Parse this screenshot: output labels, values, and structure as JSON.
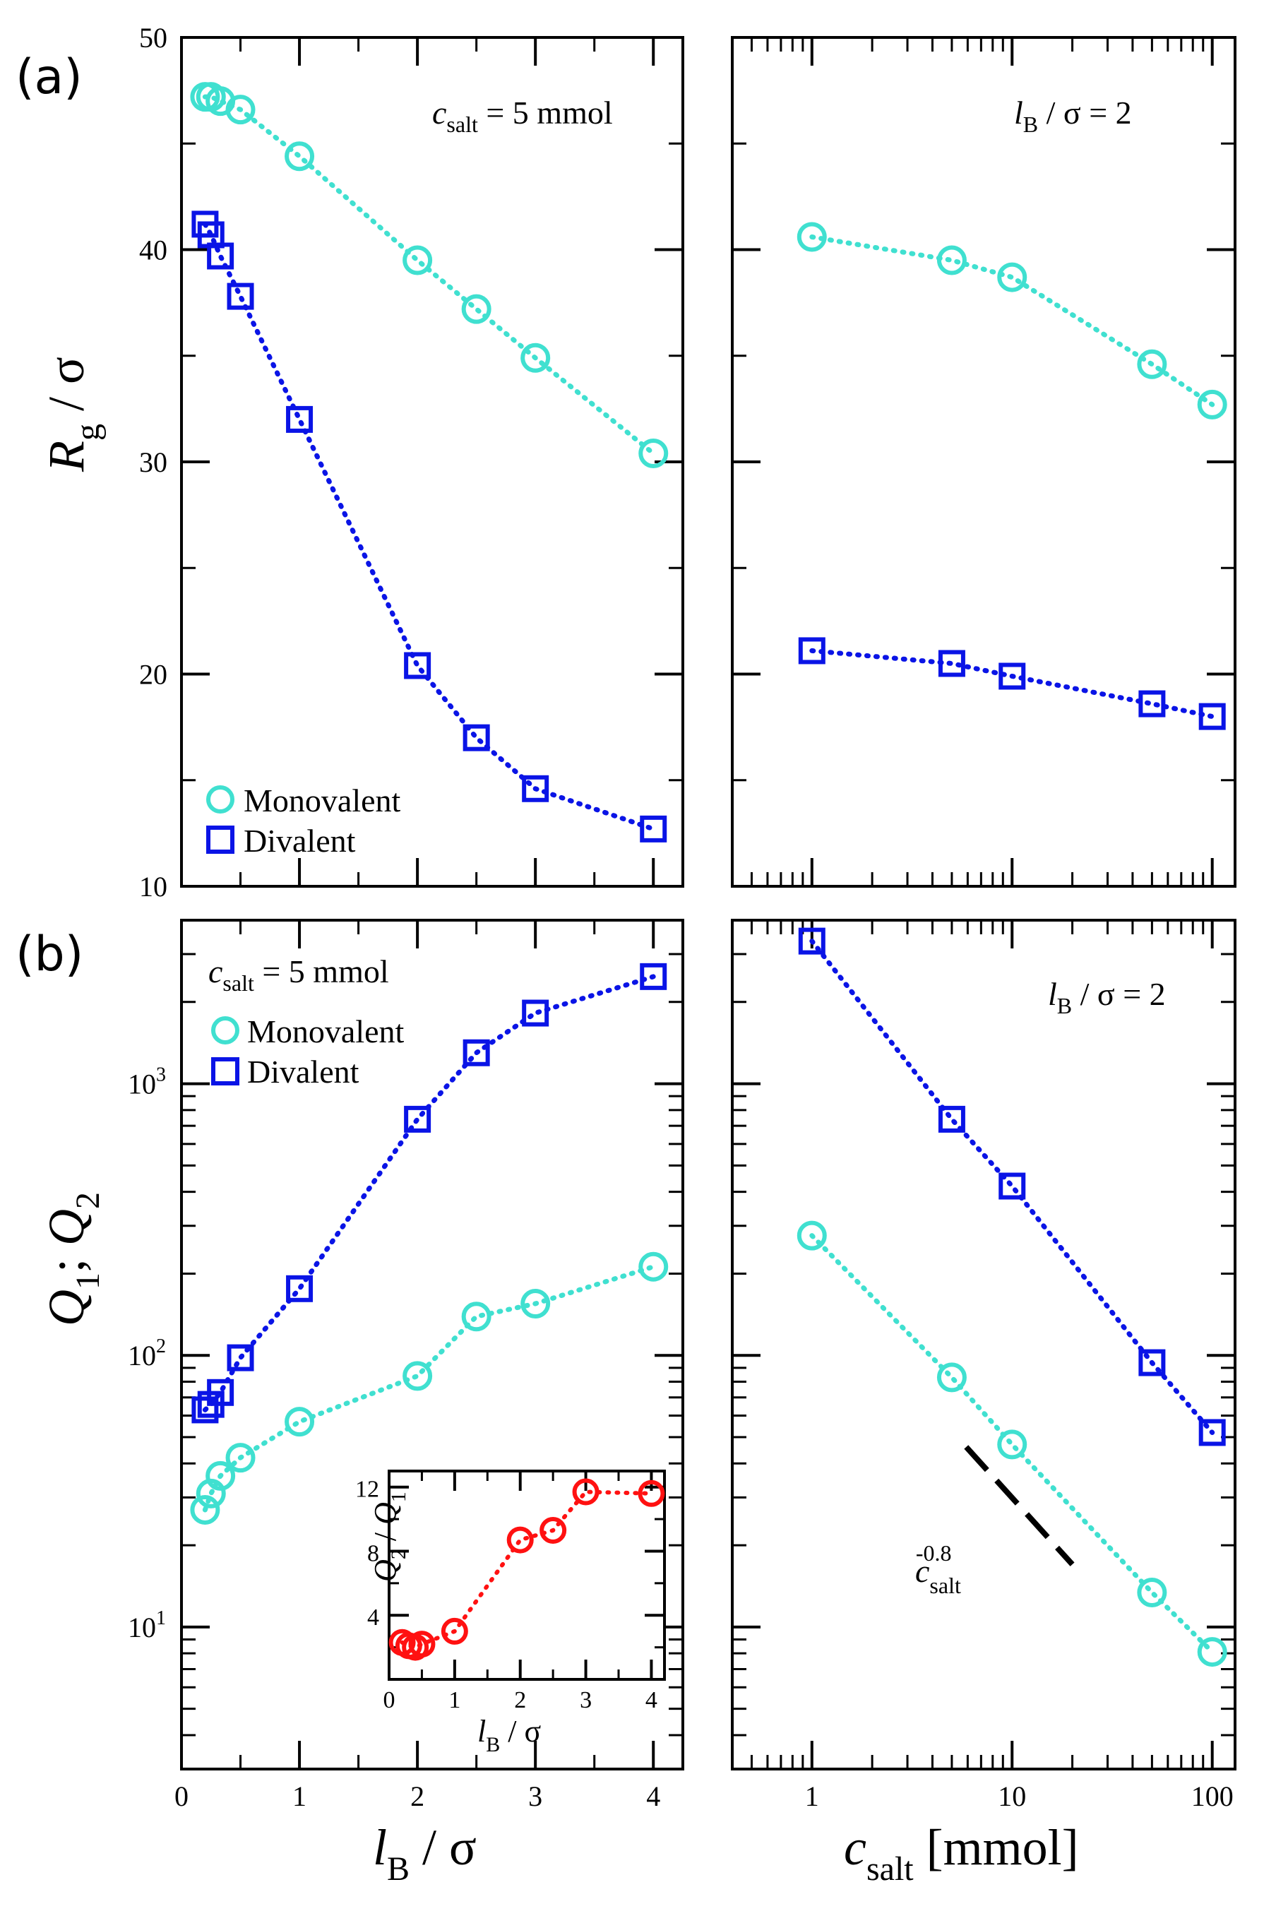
{
  "panel_labels": [
    "(a)",
    "(b)"
  ],
  "colors": {
    "monovalent": "#40e0d0",
    "divalent": "#0a14e6",
    "ratio": "#ff1111",
    "guide": "#000000"
  },
  "legend": {
    "monovalent": "Monovalent",
    "divalent": "Divalent"
  },
  "annotations": {
    "csalt_var": "c",
    "csalt_sub": "salt",
    "csalt_rest": " = 5 mmol",
    "lB_var": "l",
    "lB_sub": "B",
    "lB_rest": " / σ = 2",
    "slope_exp": "-0.8"
  },
  "axis_labels": {
    "a_ylabel_var": "R",
    "a_ylabel_sub": "g",
    "a_ylabel_rest": " / σ",
    "b_ylabel_q1": "Q",
    "b_ylabel_sub1": "1",
    "b_ylabel_sep": "; ",
    "b_ylabel_q2": "Q",
    "b_ylabel_sub2": "2",
    "xlabel_left_var": "l",
    "xlabel_left_sub": "B",
    "xlabel_left_rest": " / σ",
    "xlabel_right_var": "c",
    "xlabel_right_sub": "salt",
    "xlabel_right_rest": " [mmol]",
    "inset_ylabel_q2": "Q",
    "inset_ylabel_sub2": "2",
    "inset_ylabel_mid": " / ",
    "inset_ylabel_q1": "Q",
    "inset_ylabel_sub1": "1",
    "inset_xlabel_var": "l",
    "inset_xlabel_sub": "B",
    "inset_xlabel_rest": " / σ"
  },
  "chart_data": [
    {
      "id": "a-left",
      "type": "line",
      "x_label": "l_B / σ",
      "y_label": "R_g / σ",
      "xlim": [
        0,
        4.25
      ],
      "ylim": [
        10,
        50
      ],
      "x_ticks": [
        "0",
        "1",
        "2",
        "3",
        "4"
      ],
      "y_ticks": [
        "10",
        "20",
        "30",
        "40",
        "50"
      ],
      "annotation": "c_salt = 5 mmol",
      "series": [
        {
          "name": "Monovalent",
          "marker": "circle",
          "x": [
            0.2,
            0.25,
            0.33,
            0.5,
            1,
            2,
            2.5,
            3,
            4
          ],
          "y": [
            47.2,
            47.2,
            47.0,
            46.6,
            44.4,
            39.5,
            37.2,
            34.9,
            30.4
          ]
        },
        {
          "name": "Divalent",
          "marker": "square",
          "x": [
            0.2,
            0.25,
            0.33,
            0.5,
            1,
            2,
            2.5,
            3,
            4
          ],
          "y": [
            41.2,
            40.7,
            39.7,
            37.8,
            32.0,
            20.4,
            17.0,
            14.6,
            12.7
          ]
        }
      ]
    },
    {
      "id": "a-right",
      "type": "line",
      "x_scale": "log",
      "x_label": "c_salt [mmol]",
      "y_label": "R_g / σ",
      "xlim": [
        0.4,
        130
      ],
      "ylim": [
        10,
        50
      ],
      "x_ticks": [
        "1",
        "10",
        "100"
      ],
      "annotation": "l_B / σ = 2",
      "series": [
        {
          "name": "Monovalent",
          "marker": "circle",
          "x": [
            1,
            5,
            10,
            50,
            100
          ],
          "y": [
            40.6,
            39.5,
            38.7,
            34.6,
            32.7
          ]
        },
        {
          "name": "Divalent",
          "marker": "square",
          "x": [
            1,
            5,
            10,
            50,
            100
          ],
          "y": [
            21.1,
            20.5,
            19.9,
            18.6,
            18.0
          ]
        }
      ]
    },
    {
      "id": "b-left",
      "type": "line",
      "y_scale": "log",
      "x_label": "l_B / σ",
      "y_label": "Q_1; Q_2",
      "xlim": [
        0,
        4.25
      ],
      "ylim": [
        3,
        4000
      ],
      "x_ticks": [
        "0",
        "1",
        "2",
        "3",
        "4"
      ],
      "y_ticks": [
        {
          "base": "10",
          "exp": "1"
        },
        {
          "base": "10",
          "exp": "2"
        },
        {
          "base": "10",
          "exp": "3"
        }
      ],
      "annotation": "c_salt = 5 mmol",
      "series": [
        {
          "name": "Monovalent",
          "marker": "circle",
          "x": [
            0.2,
            0.25,
            0.33,
            0.5,
            1,
            2,
            2.5,
            3,
            4
          ],
          "y": [
            27,
            31,
            36,
            42,
            57,
            84,
            139,
            155,
            212
          ]
        },
        {
          "name": "Divalent",
          "marker": "square",
          "x": [
            0.2,
            0.25,
            0.33,
            0.5,
            1,
            2,
            2.5,
            3,
            4
          ],
          "y": [
            63,
            66,
            73,
            98,
            176,
            740,
            1300,
            1820,
            2480
          ]
        }
      ]
    },
    {
      "id": "b-right",
      "type": "line",
      "x_scale": "log",
      "y_scale": "log",
      "x_label": "c_salt [mmol]",
      "xlim": [
        0.4,
        130
      ],
      "ylim": [
        3,
        4000
      ],
      "x_ticks": [
        "1",
        "10",
        "100"
      ],
      "annotation": "l_B / σ = 2",
      "guide": {
        "label": "c_salt^-0.8",
        "x": [
          5.9,
          20
        ],
        "y": [
          46,
          17
        ]
      },
      "series": [
        {
          "name": "Monovalent",
          "marker": "circle",
          "x": [
            1,
            5,
            10,
            50,
            100
          ],
          "y": [
            276,
            83,
            47,
            13.4,
            8.1
          ]
        },
        {
          "name": "Divalent",
          "marker": "square",
          "x": [
            1,
            5,
            10,
            50,
            100
          ],
          "y": [
            3350,
            740,
            420,
            94,
            52
          ]
        }
      ]
    },
    {
      "id": "b-inset",
      "type": "line",
      "x_label": "l_B / σ",
      "y_label": "Q_2 / Q_1",
      "xlim": [
        0,
        4.2
      ],
      "ylim": [
        0,
        13
      ],
      "x_ticks": [
        "0",
        "1",
        "2",
        "3",
        "4"
      ],
      "y_ticks": [
        "4",
        "8",
        "12"
      ],
      "series": [
        {
          "name": "Q2/Q1",
          "marker": "circle",
          "x": [
            0.2,
            0.3,
            0.4,
            0.5,
            1,
            2,
            2.5,
            3,
            4
          ],
          "y": [
            2.3,
            2.1,
            2.0,
            2.2,
            3.0,
            8.7,
            9.3,
            11.7,
            11.6
          ]
        }
      ]
    }
  ]
}
